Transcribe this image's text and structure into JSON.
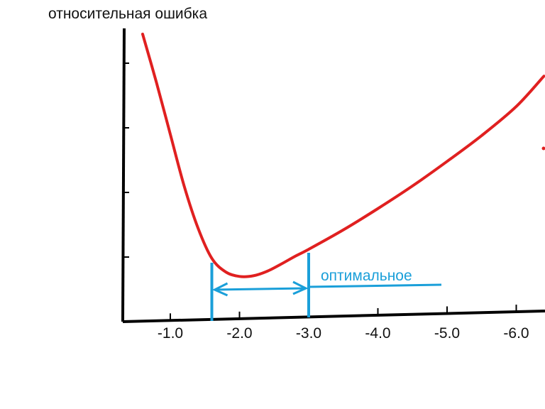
{
  "chart_data": {
    "type": "line",
    "ylabel": "относительная ошибка",
    "xlabel": "",
    "x_tick_labels": [
      "-1.0",
      "-2.0",
      "-3.0",
      "-4.0",
      "-5.0",
      "-6.0"
    ],
    "x_ticks": [
      -1.0,
      -2.0,
      -3.0,
      -4.0,
      -5.0,
      -6.0
    ],
    "xlim": [
      -0.3,
      -6.4
    ],
    "y_tick_labels": [],
    "y_ticks": [
      1,
      2,
      3,
      4
    ],
    "ylim": [
      0,
      4.5
    ],
    "grid": false,
    "legend": "none",
    "series": [
      {
        "color": "#e02020",
        "x": [
          -0.6,
          -0.8,
          -1.0,
          -1.2,
          -1.4,
          -1.6,
          -1.8,
          -2.0,
          -2.2,
          -2.4,
          -2.6,
          -2.8,
          -3.0,
          -3.5,
          -4.0,
          -4.5,
          -5.0,
          -5.5,
          -6.0,
          -6.4
        ],
        "y": [
          4.45,
          3.7,
          2.9,
          2.1,
          1.45,
          0.98,
          0.77,
          0.7,
          0.71,
          0.78,
          0.89,
          1.01,
          1.12,
          1.42,
          1.75,
          2.1,
          2.48,
          2.88,
          3.33,
          3.8
        ]
      }
    ],
    "annotations": [
      {
        "text": "оптимальное",
        "color": "#1a9fd9",
        "range": [
          -1.6,
          -3.0
        ]
      }
    ]
  }
}
